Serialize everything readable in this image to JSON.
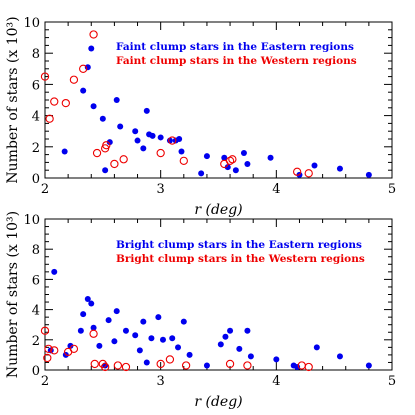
{
  "chart_data": [
    {
      "type": "scatter",
      "xlabel": "r (deg)",
      "ylabel": "Number of stars (x 10³)",
      "xlim": [
        2,
        5
      ],
      "ylim": [
        0,
        10
      ],
      "xticks": [
        "2",
        "3",
        "4",
        "5"
      ],
      "yticks": [
        "0",
        "2",
        "4",
        "6",
        "8",
        "10"
      ],
      "legend_position": "top-right",
      "series": [
        {
          "name": "Faint clump stars in the Eastern regions",
          "color": "#0000ee",
          "marker": "filled-circle",
          "points": [
            [
              2.17,
              1.7
            ],
            [
              2.33,
              5.6
            ],
            [
              2.37,
              7.1
            ],
            [
              2.4,
              8.3
            ],
            [
              2.42,
              4.6
            ],
            [
              2.5,
              3.8
            ],
            [
              2.52,
              0.5
            ],
            [
              2.56,
              2.3
            ],
            [
              2.62,
              5.0
            ],
            [
              2.65,
              3.3
            ],
            [
              2.78,
              3.0
            ],
            [
              2.8,
              2.4
            ],
            [
              2.85,
              1.9
            ],
            [
              2.88,
              4.3
            ],
            [
              2.9,
              2.8
            ],
            [
              2.93,
              2.7
            ],
            [
              3.0,
              2.6
            ],
            [
              3.08,
              2.4
            ],
            [
              3.13,
              2.4
            ],
            [
              3.16,
              2.5
            ],
            [
              3.18,
              1.7
            ],
            [
              3.35,
              0.3
            ],
            [
              3.4,
              1.4
            ],
            [
              3.55,
              1.3
            ],
            [
              3.58,
              0.7
            ],
            [
              3.65,
              0.5
            ],
            [
              3.72,
              1.6
            ],
            [
              3.75,
              0.9
            ],
            [
              3.95,
              1.3
            ],
            [
              4.2,
              0.2
            ],
            [
              4.33,
              0.8
            ],
            [
              4.55,
              0.6
            ],
            [
              4.8,
              0.2
            ]
          ]
        },
        {
          "name": "Faint clump stars in the Western regions",
          "color": "#ee0000",
          "marker": "open-circle",
          "points": [
            [
              2.0,
              6.5
            ],
            [
              2.04,
              3.8
            ],
            [
              2.08,
              4.9
            ],
            [
              2.18,
              4.8
            ],
            [
              2.25,
              6.3
            ],
            [
              2.33,
              7.0
            ],
            [
              2.42,
              9.2
            ],
            [
              2.45,
              1.6
            ],
            [
              2.52,
              1.9
            ],
            [
              2.53,
              2.1
            ],
            [
              2.6,
              0.9
            ],
            [
              2.68,
              1.2
            ],
            [
              3.0,
              1.6
            ],
            [
              3.1,
              2.4
            ],
            [
              3.2,
              1.1
            ],
            [
              3.55,
              0.9
            ],
            [
              3.6,
              1.1
            ],
            [
              3.62,
              1.2
            ],
            [
              4.18,
              0.4
            ],
            [
              4.28,
              0.3
            ]
          ]
        }
      ]
    },
    {
      "type": "scatter",
      "xlabel": "r (deg)",
      "ylabel": "Number of stars (x 10³)",
      "xlim": [
        2,
        5
      ],
      "ylim": [
        0,
        10
      ],
      "xticks": [
        "2",
        "3",
        "4",
        "5"
      ],
      "yticks": [
        "0",
        "2",
        "4",
        "6",
        "8",
        "10"
      ],
      "legend_position": "top-right",
      "series": [
        {
          "name": "Bright clump stars in the Eastern regions",
          "color": "#0000ee",
          "marker": "filled-circle",
          "points": [
            [
              2.05,
              1.3
            ],
            [
              2.08,
              6.5
            ],
            [
              2.18,
              1.0
            ],
            [
              2.22,
              1.6
            ],
            [
              2.31,
              2.6
            ],
            [
              2.33,
              3.7
            ],
            [
              2.37,
              4.7
            ],
            [
              2.4,
              4.4
            ],
            [
              2.42,
              2.8
            ],
            [
              2.47,
              1.6
            ],
            [
              2.52,
              0.3
            ],
            [
              2.55,
              3.3
            ],
            [
              2.6,
              1.9
            ],
            [
              2.62,
              3.9
            ],
            [
              2.7,
              2.6
            ],
            [
              2.78,
              2.3
            ],
            [
              2.82,
              1.3
            ],
            [
              2.85,
              3.2
            ],
            [
              2.88,
              0.5
            ],
            [
              2.92,
              2.1
            ],
            [
              2.98,
              3.5
            ],
            [
              3.02,
              2.0
            ],
            [
              3.1,
              2.1
            ],
            [
              3.15,
              1.5
            ],
            [
              3.2,
              3.2
            ],
            [
              3.25,
              1.0
            ],
            [
              3.4,
              0.3
            ],
            [
              3.52,
              1.7
            ],
            [
              3.56,
              2.2
            ],
            [
              3.6,
              2.6
            ],
            [
              3.68,
              1.4
            ],
            [
              3.75,
              2.6
            ],
            [
              3.78,
              0.9
            ],
            [
              4.0,
              0.7
            ],
            [
              4.15,
              0.3
            ],
            [
              4.18,
              0.2
            ],
            [
              4.35,
              1.5
            ],
            [
              4.55,
              0.9
            ],
            [
              4.8,
              0.3
            ]
          ]
        },
        {
          "name": "Bright clump stars in the Western regions",
          "color": "#ee0000",
          "marker": "open-circle",
          "points": [
            [
              2.0,
              2.6
            ],
            [
              2.02,
              0.8
            ],
            [
              2.03,
              1.4
            ],
            [
              2.08,
              1.3
            ],
            [
              2.2,
              1.2
            ],
            [
              2.25,
              1.4
            ],
            [
              2.42,
              2.4
            ],
            [
              2.43,
              0.4
            ],
            [
              2.5,
              0.4
            ],
            [
              2.52,
              0.2
            ],
            [
              2.63,
              0.3
            ],
            [
              2.7,
              0.2
            ],
            [
              3.0,
              0.4
            ],
            [
              3.08,
              0.7
            ],
            [
              3.22,
              0.3
            ],
            [
              3.6,
              0.4
            ],
            [
              3.75,
              0.3
            ],
            [
              4.22,
              0.3
            ],
            [
              4.28,
              0.2
            ]
          ]
        }
      ]
    }
  ]
}
